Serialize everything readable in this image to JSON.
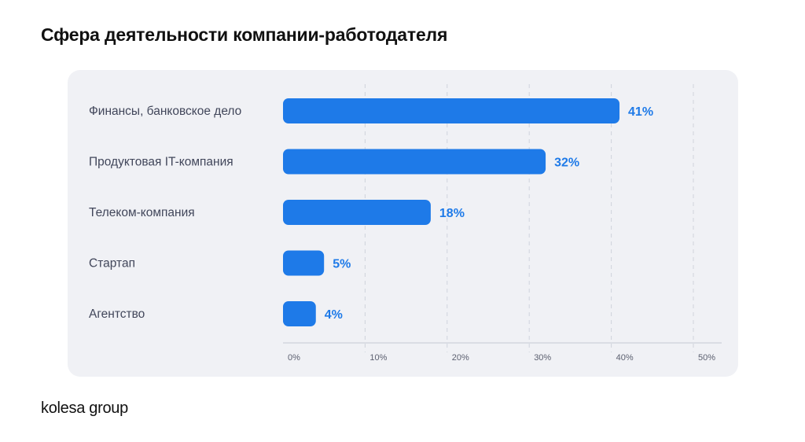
{
  "page": {
    "title": "Сфера деятельности компании-работодателя",
    "brand": "kolesa group"
  },
  "colors": {
    "bar": "#1e7ae8",
    "value_label": "#1e7ae8",
    "category_label": "#41465a",
    "tick_label": "#5c6070",
    "grid": "#cfd3dc",
    "axis": "#c5c9d2",
    "card_background": "#f0f1f5"
  },
  "chart_data": {
    "type": "bar",
    "orientation": "horizontal",
    "title": "Сфера деятельности компании-работодателя",
    "categories": [
      "Финансы, банковское дело",
      "Продуктовая IT-компания",
      "Телеком-компания",
      "Стартап",
      "Агентство"
    ],
    "values": [
      41,
      32,
      18,
      5,
      4
    ],
    "value_labels": [
      "41%",
      "32%",
      "18%",
      "5%",
      "4%"
    ],
    "xlim": [
      0,
      50
    ],
    "xticks": [
      0,
      10,
      20,
      30,
      40,
      50
    ],
    "xtick_labels": [
      "0%",
      "10%",
      "20%",
      "30%",
      "40%",
      "50%"
    ],
    "xlabel": "",
    "ylabel": "",
    "grid": "vertical-dashed",
    "legend": "none"
  }
}
